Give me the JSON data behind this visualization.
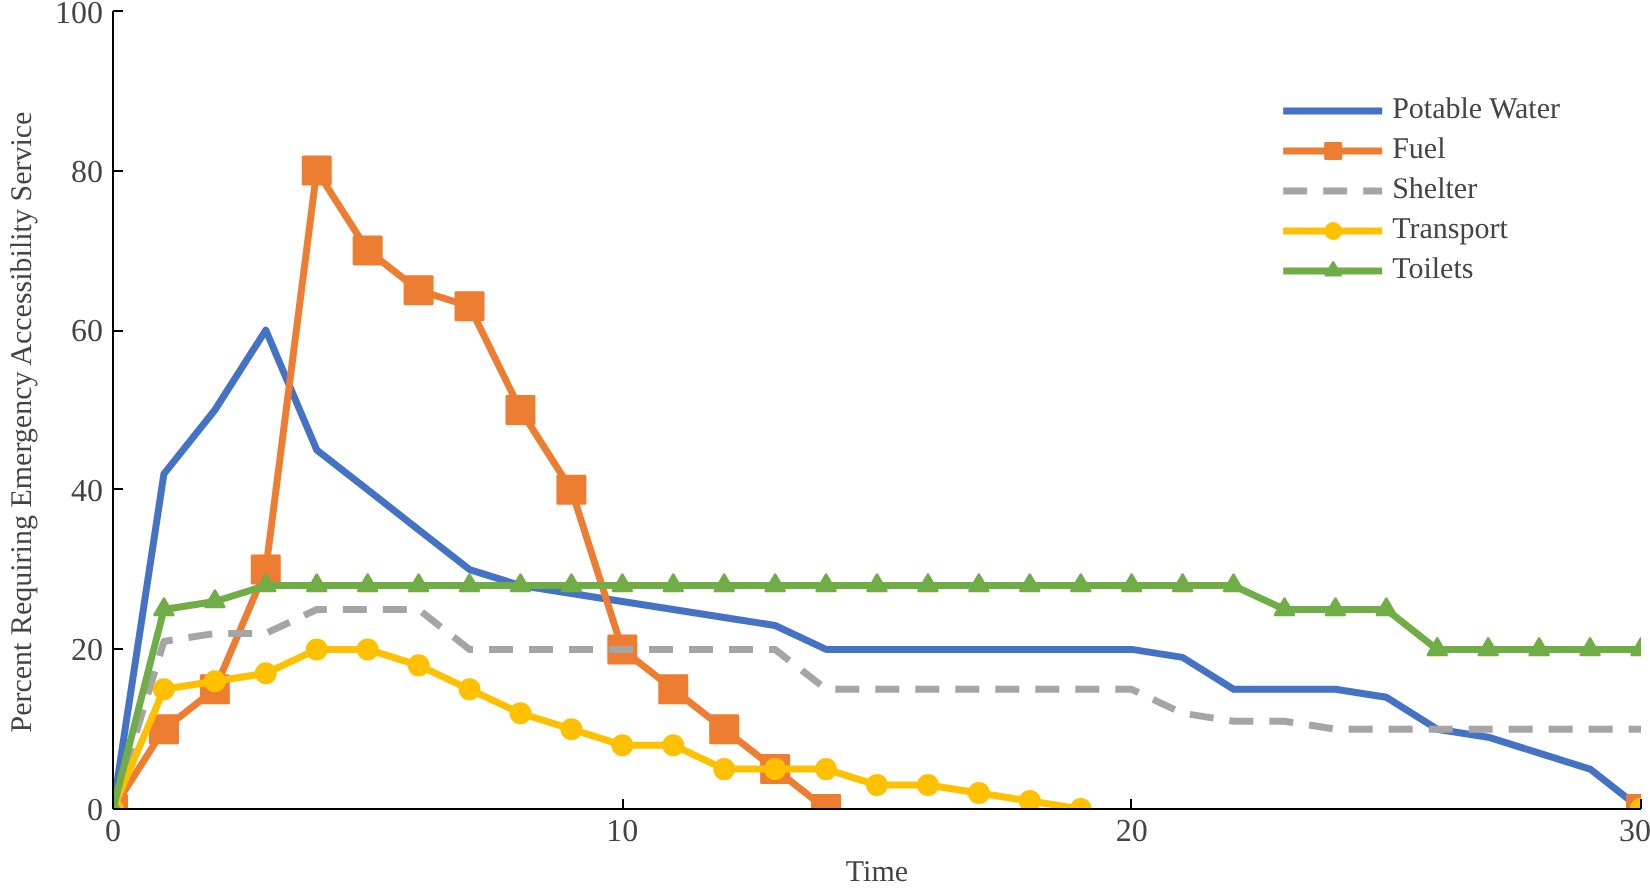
{
  "chart_data": {
    "type": "line",
    "xlabel": "Time",
    "ylabel": "Percent Requiring  Emergency  Accessibility  Service",
    "x": [
      0,
      1,
      2,
      3,
      4,
      5,
      6,
      7,
      8,
      9,
      10,
      11,
      12,
      13,
      14,
      15,
      16,
      17,
      18,
      19,
      20,
      21,
      22,
      23,
      24,
      25,
      26,
      27,
      28,
      29,
      30
    ],
    "xlim": [
      0,
      30
    ],
    "xticks": [
      0,
      10,
      20,
      30
    ],
    "ylim": [
      0,
      100
    ],
    "yticks": [
      0,
      20,
      40,
      60,
      80,
      100
    ],
    "grid": false,
    "legend": "top right",
    "series": [
      {
        "name": "Potable Water",
        "color": "#4472c4",
        "marker": "none",
        "line_style": "solid",
        "values": [
          0,
          42,
          50,
          60,
          45,
          40,
          35,
          30,
          28,
          27,
          26,
          25,
          24,
          23,
          20,
          20,
          20,
          20,
          20,
          20,
          20,
          19,
          15,
          15,
          15,
          14,
          10,
          9,
          7,
          5,
          0
        ]
      },
      {
        "name": "Fuel",
        "color": "#ed7d31",
        "marker": "square",
        "line_style": "solid",
        "values": [
          0,
          10,
          15,
          30,
          80,
          70,
          65,
          63,
          50,
          40,
          20,
          15,
          10,
          5,
          0,
          null,
          null,
          null,
          null,
          null,
          null,
          null,
          null,
          null,
          null,
          null,
          null,
          null,
          null,
          null,
          0
        ]
      },
      {
        "name": "Shelter",
        "color": "#a5a5a5",
        "marker": "none",
        "line_style": "dashed",
        "values": [
          0,
          21,
          22,
          22,
          25,
          25,
          25,
          20,
          20,
          20,
          20,
          20,
          20,
          20,
          15,
          15,
          15,
          15,
          15,
          15,
          15,
          12,
          11,
          11,
          10,
          10,
          10,
          10,
          10,
          10,
          10
        ]
      },
      {
        "name": "Transport",
        "color": "#ffc000",
        "marker": "circle",
        "line_style": "solid",
        "values": [
          0,
          15,
          16,
          17,
          20,
          20,
          18,
          15,
          12,
          10,
          8,
          8,
          5,
          5,
          5,
          3,
          3,
          2,
          1,
          0,
          null,
          null,
          null,
          null,
          null,
          null,
          null,
          null,
          null,
          null,
          0
        ]
      },
      {
        "name": "Toilets",
        "color": "#70ad47",
        "marker": "triangle",
        "line_style": "solid",
        "values": [
          0,
          25,
          26,
          28,
          28,
          28,
          28,
          28,
          28,
          28,
          28,
          28,
          28,
          28,
          28,
          28,
          28,
          28,
          28,
          28,
          28,
          28,
          28,
          25,
          25,
          25,
          20,
          20,
          20,
          20,
          20
        ]
      }
    ]
  }
}
